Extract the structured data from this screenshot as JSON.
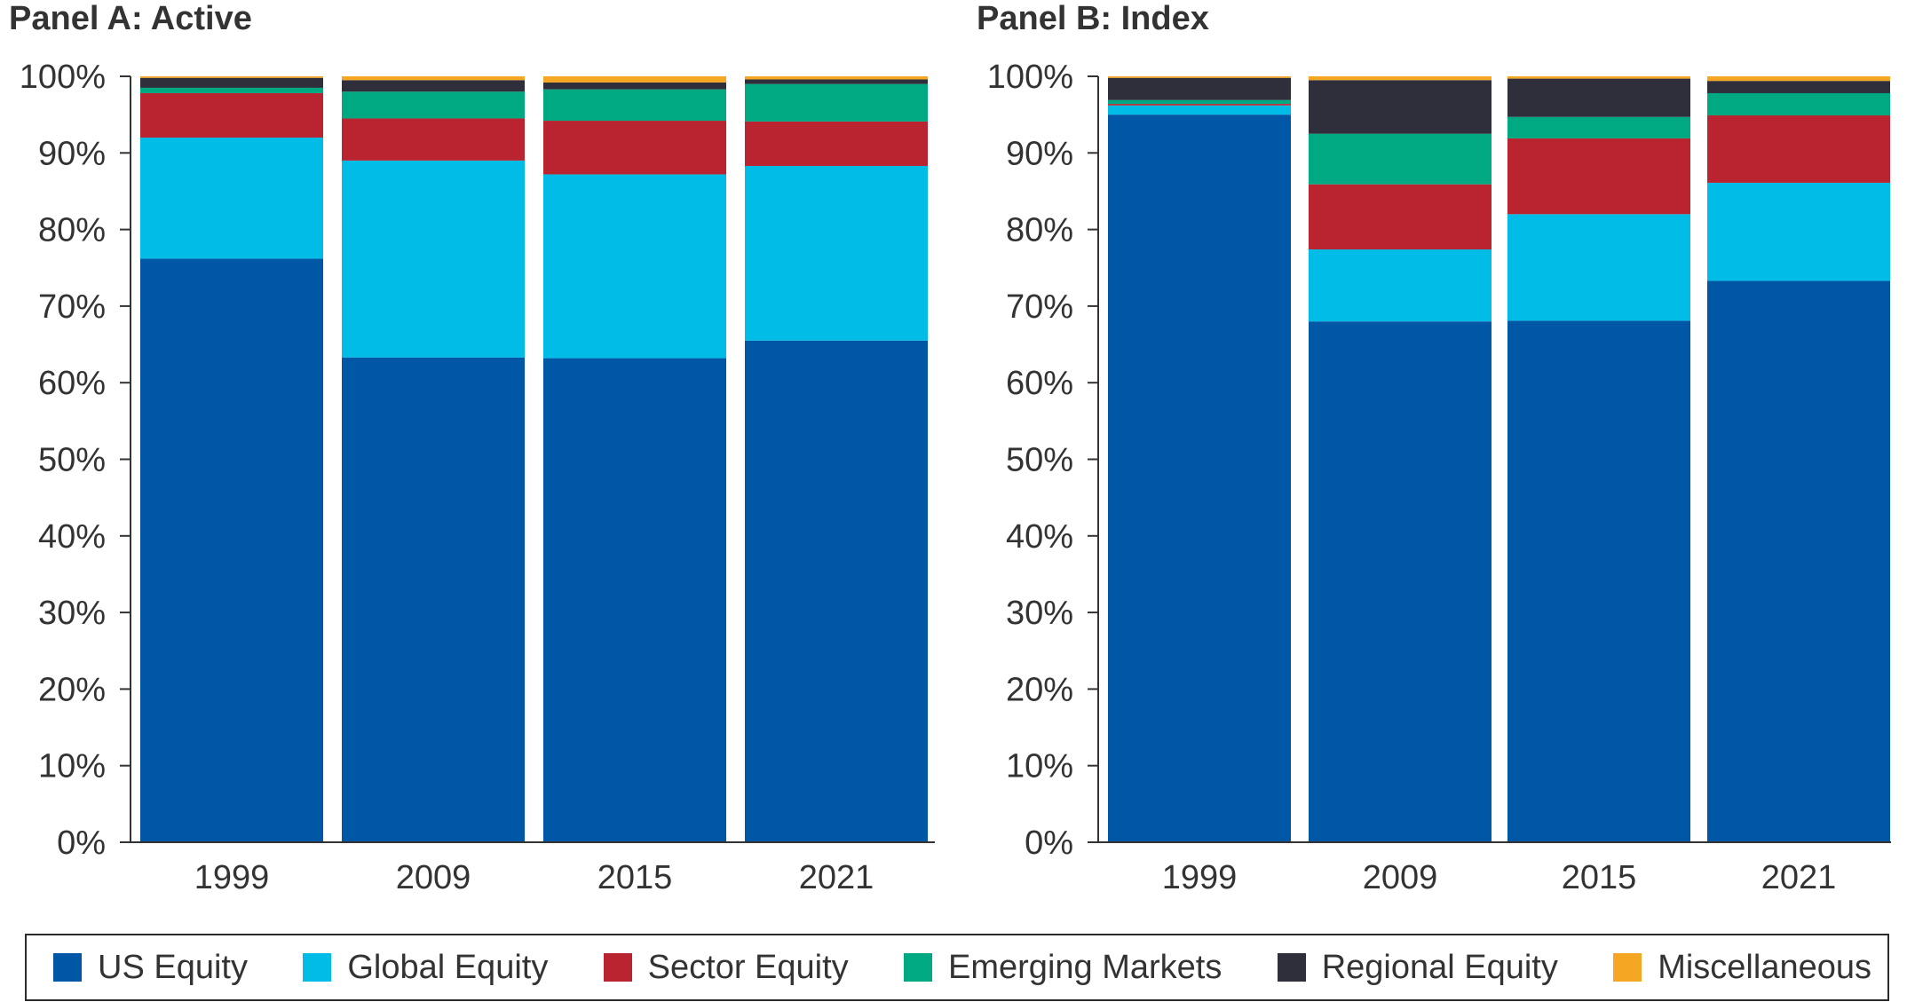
{
  "panels": {
    "a": {
      "title": "Panel A: Active"
    },
    "b": {
      "title": "Panel B: Index"
    }
  },
  "legend": [
    {
      "label": "US Equity",
      "color": "#0057A6"
    },
    {
      "label": "Global Equity",
      "color": "#00BCE7"
    },
    {
      "label": "Sector Equity",
      "color": "#BA2330"
    },
    {
      "label": "Emerging Markets",
      "color": "#00A982"
    },
    {
      "label": "Regional Equity",
      "color": "#2E2F3B"
    },
    {
      "label": "Miscellaneous",
      "color": "#F5A623"
    }
  ],
  "chart_data": [
    {
      "type": "bar",
      "stacked": true,
      "title": "Panel A: Active",
      "categories": [
        "1999",
        "2009",
        "2015",
        "2021"
      ],
      "ylim": [
        0,
        100
      ],
      "yticks": [
        "0%",
        "10%",
        "20%",
        "30%",
        "40%",
        "50%",
        "60%",
        "70%",
        "80%",
        "90%",
        "100%"
      ],
      "grid": false,
      "series": [
        {
          "name": "US Equity",
          "color": "#0057A6",
          "values": [
            76.2,
            63.3,
            63.2,
            65.5
          ]
        },
        {
          "name": "Global Equity",
          "color": "#00BCE7",
          "values": [
            15.8,
            25.7,
            24.0,
            22.8
          ]
        },
        {
          "name": "Sector Equity",
          "color": "#BA2330",
          "values": [
            5.8,
            5.5,
            7.0,
            5.8
          ]
        },
        {
          "name": "Emerging Markets",
          "color": "#00A982",
          "values": [
            0.7,
            3.5,
            4.1,
            4.9
          ]
        },
        {
          "name": "Regional Equity",
          "color": "#2E2F3B",
          "values": [
            1.3,
            1.5,
            0.9,
            0.6
          ]
        },
        {
          "name": "Miscellaneous",
          "color": "#F5A623",
          "values": [
            0.2,
            0.5,
            0.8,
            0.4
          ]
        }
      ]
    },
    {
      "type": "bar",
      "stacked": true,
      "title": "Panel B: Index",
      "categories": [
        "1999",
        "2009",
        "2015",
        "2021"
      ],
      "ylim": [
        0,
        100
      ],
      "yticks": [
        "0%",
        "10%",
        "20%",
        "30%",
        "40%",
        "50%",
        "60%",
        "70%",
        "80%",
        "90%",
        "100%"
      ],
      "grid": false,
      "series": [
        {
          "name": "US Equity",
          "color": "#0057A6",
          "values": [
            95.0,
            68.0,
            68.1,
            73.3
          ]
        },
        {
          "name": "Global Equity",
          "color": "#00BCE7",
          "values": [
            1.2,
            9.4,
            13.9,
            12.8
          ]
        },
        {
          "name": "Sector Equity",
          "color": "#BA2330",
          "values": [
            0.2,
            8.5,
            9.9,
            8.8
          ]
        },
        {
          "name": "Emerging Markets",
          "color": "#00A982",
          "values": [
            0.5,
            6.6,
            2.8,
            2.9
          ]
        },
        {
          "name": "Regional Equity",
          "color": "#2E2F3B",
          "values": [
            2.9,
            7.0,
            5.0,
            1.6
          ]
        },
        {
          "name": "Miscellaneous",
          "color": "#F5A623",
          "values": [
            0.2,
            0.5,
            0.3,
            0.6
          ]
        }
      ]
    }
  ]
}
